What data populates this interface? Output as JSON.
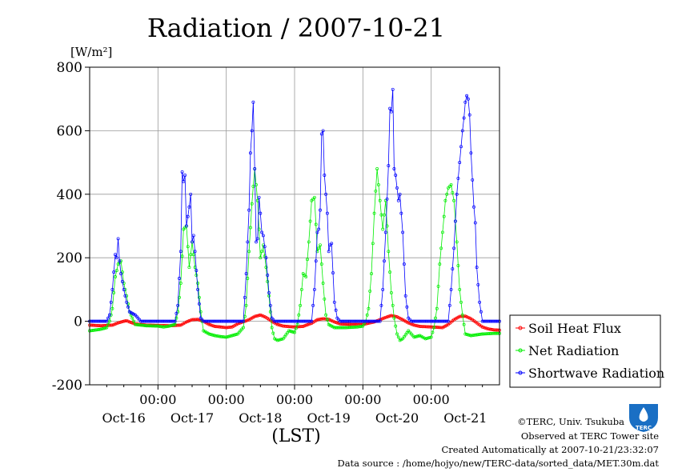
{
  "chart_data": {
    "type": "line",
    "title": "Radiation / 2007-10-21",
    "ylabel": "[W/m²]",
    "xlabel": "(LST)",
    "ylim": [
      -200,
      800
    ],
    "yticks": [
      "800",
      "600",
      "400",
      "200",
      "0",
      "-200"
    ],
    "x_time_ticks": [
      "00:00",
      "00:00",
      "00:00",
      "00:00",
      "00:00"
    ],
    "x_day_labels": [
      "Oct-16",
      "Oct-17",
      "Oct-18",
      "Oct-19",
      "Oct-20",
      "Oct-21"
    ],
    "x_unit": "hours since 2007-10-16 00:00",
    "xlim": [
      0,
      144
    ],
    "grid": true,
    "legend_position": "bottom-right, outside plot",
    "series": [
      {
        "name": "Soil Heat Flux",
        "color": "#ff0000",
        "points": [
          [
            0,
            -12
          ],
          [
            4,
            -14
          ],
          [
            8,
            -12
          ],
          [
            10,
            -5
          ],
          [
            12,
            0
          ],
          [
            13,
            2
          ],
          [
            14,
            -2
          ],
          [
            16,
            -8
          ],
          [
            20,
            -12
          ],
          [
            24,
            -13
          ],
          [
            28,
            -14
          ],
          [
            32,
            -12
          ],
          [
            34,
            -2
          ],
          [
            36,
            5
          ],
          [
            38,
            6
          ],
          [
            40,
            0
          ],
          [
            42,
            -10
          ],
          [
            44,
            -16
          ],
          [
            48,
            -20
          ],
          [
            50,
            -18
          ],
          [
            52,
            -8
          ],
          [
            56,
            5
          ],
          [
            58,
            15
          ],
          [
            60,
            20
          ],
          [
            62,
            12
          ],
          [
            64,
            0
          ],
          [
            66,
            -10
          ],
          [
            68,
            -15
          ],
          [
            72,
            -18
          ],
          [
            75,
            -16
          ],
          [
            78,
            -6
          ],
          [
            80,
            5
          ],
          [
            82,
            8
          ],
          [
            84,
            6
          ],
          [
            86,
            -2
          ],
          [
            88,
            -8
          ],
          [
            92,
            -10
          ],
          [
            96,
            -10
          ],
          [
            100,
            -2
          ],
          [
            104,
            12
          ],
          [
            106,
            18
          ],
          [
            108,
            14
          ],
          [
            110,
            5
          ],
          [
            112,
            -5
          ],
          [
            114,
            -12
          ],
          [
            116,
            -16
          ],
          [
            120,
            -18
          ],
          [
            124,
            -20
          ],
          [
            126,
            -10
          ],
          [
            128,
            5
          ],
          [
            130,
            15
          ],
          [
            132,
            16
          ],
          [
            134,
            8
          ],
          [
            136,
            -5
          ],
          [
            138,
            -18
          ],
          [
            140,
            -24
          ],
          [
            142,
            -27
          ],
          [
            144,
            -28
          ]
        ]
      },
      {
        "name": "Net Radiation",
        "color": "#00ee00",
        "points": [
          [
            0,
            -30
          ],
          [
            4,
            -25
          ],
          [
            6,
            -20
          ],
          [
            7,
            0
          ],
          [
            8,
            40
          ],
          [
            9,
            140
          ],
          [
            10,
            180
          ],
          [
            11,
            190
          ],
          [
            12,
            120
          ],
          [
            13,
            80
          ],
          [
            14,
            30
          ],
          [
            15,
            10
          ],
          [
            16,
            -10
          ],
          [
            20,
            -14
          ],
          [
            24,
            -15
          ],
          [
            26,
            -18
          ],
          [
            28,
            -15
          ],
          [
            30,
            -10
          ],
          [
            31,
            30
          ],
          [
            32,
            120
          ],
          [
            33,
            290
          ],
          [
            34,
            300
          ],
          [
            35,
            170
          ],
          [
            36,
            250
          ],
          [
            37,
            170
          ],
          [
            38,
            120
          ],
          [
            39,
            30
          ],
          [
            40,
            -30
          ],
          [
            42,
            -40
          ],
          [
            44,
            -45
          ],
          [
            46,
            -48
          ],
          [
            48,
            -50
          ],
          [
            50,
            -45
          ],
          [
            52,
            -40
          ],
          [
            54,
            -20
          ],
          [
            55,
            50
          ],
          [
            56,
            220
          ],
          [
            57,
            370
          ],
          [
            58,
            480
          ],
          [
            59,
            380
          ],
          [
            60,
            200
          ],
          [
            61,
            240
          ],
          [
            62,
            170
          ],
          [
            63,
            80
          ],
          [
            64,
            -20
          ],
          [
            65,
            -55
          ],
          [
            66,
            -60
          ],
          [
            68,
            -55
          ],
          [
            70,
            -30
          ],
          [
            72,
            -35
          ],
          [
            73,
            -10
          ],
          [
            74,
            50
          ],
          [
            75,
            150
          ],
          [
            76,
            140
          ],
          [
            77,
            250
          ],
          [
            78,
            380
          ],
          [
            79,
            390
          ],
          [
            80,
            220
          ],
          [
            81,
            240
          ],
          [
            82,
            120
          ],
          [
            83,
            20
          ],
          [
            84,
            -10
          ],
          [
            86,
            -20
          ],
          [
            90,
            -20
          ],
          [
            94,
            -18
          ],
          [
            96,
            -15
          ],
          [
            97,
            0
          ],
          [
            98,
            40
          ],
          [
            99,
            150
          ],
          [
            100,
            340
          ],
          [
            101,
            480
          ],
          [
            102,
            380
          ],
          [
            103,
            290
          ],
          [
            104,
            380
          ],
          [
            105,
            220
          ],
          [
            106,
            90
          ],
          [
            107,
            10
          ],
          [
            108,
            -40
          ],
          [
            109,
            -60
          ],
          [
            110,
            -55
          ],
          [
            112,
            -30
          ],
          [
            114,
            -50
          ],
          [
            116,
            -45
          ],
          [
            118,
            -55
          ],
          [
            120,
            -50
          ],
          [
            121,
            -20
          ],
          [
            122,
            40
          ],
          [
            123,
            180
          ],
          [
            124,
            280
          ],
          [
            125,
            380
          ],
          [
            126,
            420
          ],
          [
            127,
            430
          ],
          [
            128,
            380
          ],
          [
            129,
            250
          ],
          [
            130,
            100
          ],
          [
            131,
            20
          ],
          [
            132,
            -40
          ],
          [
            134,
            -45
          ],
          [
            138,
            -40
          ],
          [
            142,
            -38
          ],
          [
            144,
            -38
          ]
        ]
      },
      {
        "name": "Shortwave Radiation",
        "color": "#0000ff",
        "points": [
          [
            0,
            0
          ],
          [
            6,
            0
          ],
          [
            7,
            20
          ],
          [
            8,
            100
          ],
          [
            9,
            210
          ],
          [
            9.5,
            200
          ],
          [
            10,
            260
          ],
          [
            10.5,
            190
          ],
          [
            11,
            150
          ],
          [
            12,
            100
          ],
          [
            13,
            60
          ],
          [
            14,
            30
          ],
          [
            15,
            25
          ],
          [
            16,
            20
          ],
          [
            17,
            10
          ],
          [
            18,
            0
          ],
          [
            24,
            0
          ],
          [
            30,
            0
          ],
          [
            31,
            50
          ],
          [
            32,
            220
          ],
          [
            32.5,
            470
          ],
          [
            33,
            440
          ],
          [
            33.5,
            460
          ],
          [
            34,
            300
          ],
          [
            35,
            360
          ],
          [
            35.5,
            400
          ],
          [
            36,
            250
          ],
          [
            36.5,
            270
          ],
          [
            37,
            220
          ],
          [
            38,
            100
          ],
          [
            39,
            10
          ],
          [
            40,
            0
          ],
          [
            48,
            0
          ],
          [
            54,
            0
          ],
          [
            55,
            150
          ],
          [
            56,
            350
          ],
          [
            56.5,
            530
          ],
          [
            57,
            600
          ],
          [
            57.5,
            690
          ],
          [
            58,
            480
          ],
          [
            58.5,
            250
          ],
          [
            59,
            260
          ],
          [
            59.5,
            390
          ],
          [
            60,
            340
          ],
          [
            60.5,
            280
          ],
          [
            61,
            270
          ],
          [
            62,
            200
          ],
          [
            63,
            90
          ],
          [
            64,
            10
          ],
          [
            65,
            0
          ],
          [
            72,
            0
          ],
          [
            78,
            0
          ],
          [
            79,
            100
          ],
          [
            80,
            280
          ],
          [
            80.5,
            290
          ],
          [
            81,
            350
          ],
          [
            81.5,
            590
          ],
          [
            82,
            600
          ],
          [
            82.5,
            460
          ],
          [
            83,
            400
          ],
          [
            83.5,
            340
          ],
          [
            84,
            220
          ],
          [
            84.5,
            240
          ],
          [
            85,
            245
          ],
          [
            86,
            60
          ],
          [
            87,
            10
          ],
          [
            88,
            0
          ],
          [
            96,
            0
          ],
          [
            102,
            0
          ],
          [
            103,
            100
          ],
          [
            104,
            280
          ],
          [
            105,
            490
          ],
          [
            105.5,
            670
          ],
          [
            106,
            660
          ],
          [
            106.5,
            730
          ],
          [
            107,
            480
          ],
          [
            107.5,
            460
          ],
          [
            108,
            420
          ],
          [
            108.5,
            380
          ],
          [
            109,
            400
          ],
          [
            110,
            280
          ],
          [
            111,
            80
          ],
          [
            112,
            10
          ],
          [
            113,
            0
          ],
          [
            120,
            0
          ],
          [
            126,
            0
          ],
          [
            127,
            100
          ],
          [
            128,
            230
          ],
          [
            129,
            400
          ],
          [
            130,
            500
          ],
          [
            131,
            600
          ],
          [
            131.5,
            640
          ],
          [
            132,
            690
          ],
          [
            132.5,
            710
          ],
          [
            133,
            700
          ],
          [
            133.5,
            650
          ],
          [
            134,
            530
          ],
          [
            135,
            360
          ],
          [
            135.5,
            310
          ],
          [
            136,
            170
          ],
          [
            137,
            60
          ],
          [
            138,
            0
          ],
          [
            144,
            0
          ]
        ]
      }
    ]
  },
  "footer": {
    "copyright": "©TERC, Univ. Tsukuba",
    "observed": "Observed at TERC Tower site",
    "created": "Created Automatically at 2007-10-21/23:32:07",
    "source": "Data source : /home/hojyo/new/TERC-data/sorted_data/MET.30m.dat"
  },
  "logo": {
    "text": "TERC",
    "color": "#1a6fc4"
  }
}
